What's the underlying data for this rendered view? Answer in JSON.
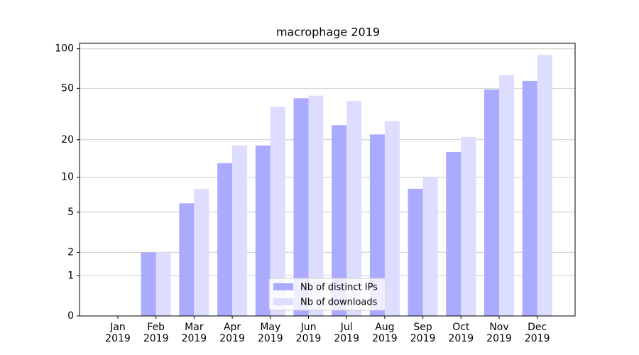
{
  "chart_data": {
    "type": "bar",
    "title": "macrophage 2019",
    "categories": [
      "Jan\n2019",
      "Feb\n2019",
      "Mar\n2019",
      "Apr\n2019",
      "May\n2019",
      "Jun\n2019",
      "Jul\n2019",
      "Aug\n2019",
      "Sep\n2019",
      "Oct\n2019",
      "Nov\n2019",
      "Dec\n2019"
    ],
    "series": [
      {
        "name": "Nb of distinct IPs",
        "color": "#aaaaff",
        "values": [
          0,
          2,
          6,
          13,
          18,
          42,
          26,
          22,
          8,
          16,
          49,
          57
        ]
      },
      {
        "name": "Nb of downloads",
        "color": "#ddddff",
        "values": [
          0,
          2,
          8,
          18,
          36,
          44,
          40,
          28,
          10,
          21,
          63,
          90
        ]
      }
    ],
    "y_scale": "log1p",
    "ylim": [
      0,
      110
    ],
    "yticks": [
      0,
      1,
      2,
      5,
      10,
      20,
      50,
      100
    ],
    "grid": true,
    "legend": "lower center"
  }
}
